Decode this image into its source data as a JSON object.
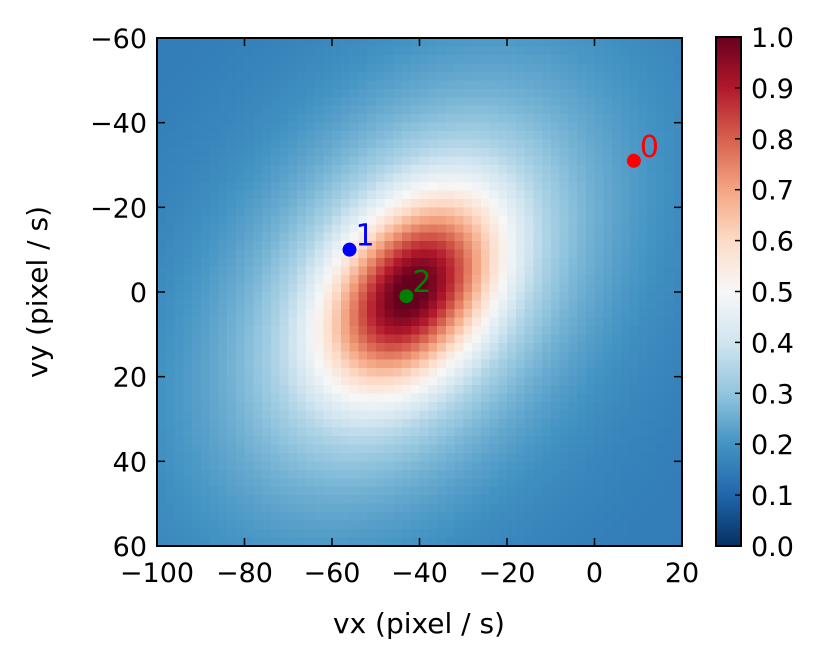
{
  "chart_data": {
    "type": "heatmap",
    "title": "",
    "xlabel": "vx (pixel / s)",
    "ylabel": "vy (pixel / s)",
    "xlim": [
      -100,
      20
    ],
    "ylim": [
      -60,
      60
    ],
    "y_inverted": true,
    "x_ticks": [
      -100,
      -80,
      -60,
      -40,
      -20,
      0,
      20
    ],
    "x_tick_labels": [
      "−100",
      "−80",
      "−60",
      "−40",
      "−20",
      "0",
      "20"
    ],
    "y_ticks": [
      -60,
      -40,
      -20,
      0,
      20,
      40,
      60
    ],
    "y_tick_labels": [
      "−60",
      "−40",
      "−20",
      "0",
      "20",
      "40",
      "60"
    ],
    "colormap": "RdBu_r",
    "colorbar": {
      "min": 0.0,
      "max": 1.0,
      "ticks": [
        0.0,
        0.1,
        0.2,
        0.3,
        0.4,
        0.5,
        0.6,
        0.7,
        0.8,
        0.9,
        1.0
      ],
      "tick_labels": [
        "0.0",
        "0.1",
        "0.2",
        "0.3",
        "0.4",
        "0.5",
        "0.6",
        "0.7",
        "0.8",
        "0.9",
        "1.0"
      ]
    },
    "peak": {
      "vx": -42,
      "vy": 0,
      "value": 1.0
    },
    "field_description_values": {
      "background_min": 0.15,
      "peak_max": 1.0
    },
    "points": [
      {
        "label": "0",
        "vx": 9,
        "vy": -31,
        "color": "#ff0000"
      },
      {
        "label": "1",
        "vx": -56,
        "vy": -10,
        "color": "#0000ff"
      },
      {
        "label": "2",
        "vx": -43,
        "vy": 1,
        "color": "#008000"
      }
    ],
    "grid": false,
    "legend": "none"
  }
}
